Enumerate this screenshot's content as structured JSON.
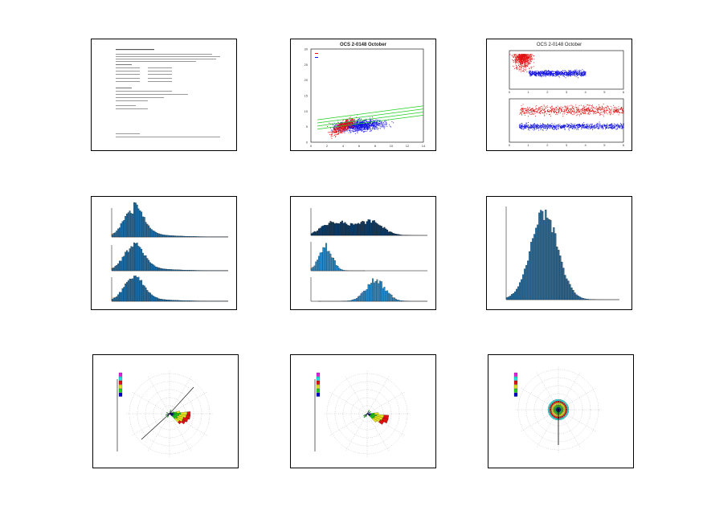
{
  "panels": [
    {
      "id": "p1"
    },
    {
      "id": "p2",
      "title": "OCS 2-0148 October"
    },
    {
      "id": "p3",
      "title": "OCS 2-0148 October"
    },
    {
      "id": "p4"
    },
    {
      "id": "p5"
    },
    {
      "id": "p6"
    },
    {
      "id": "p7"
    },
    {
      "id": "p8"
    },
    {
      "id": "p9"
    }
  ],
  "colors": {
    "red": "#e01010",
    "blue": "#1010e0",
    "green": "#20d020",
    "bar": "#1f6fa8",
    "magenta": "#e020e0",
    "cyan": "#20e0e0"
  },
  "chart_data": [
    {
      "type": "table",
      "panel": "p1",
      "title": ""
    },
    {
      "type": "scatter",
      "panel": "p2",
      "title": "OCS 2-0148 October",
      "xlim": [
        0,
        14
      ],
      "ylim": [
        0,
        30
      ],
      "xticks": [
        0,
        2,
        4,
        6,
        8,
        10,
        12,
        14
      ],
      "yticks": [
        0,
        5,
        10,
        15,
        20,
        25,
        30
      ],
      "series": [
        {
          "color": "red"
        },
        {
          "color": "blue"
        }
      ]
    },
    {
      "type": "scatter",
      "panel": "p3",
      "title": "OCS 2-0148 October",
      "xticks": [
        0,
        1,
        2,
        3,
        4,
        5,
        6
      ],
      "series": [
        {
          "color": "red"
        },
        {
          "color": "blue"
        }
      ]
    },
    {
      "type": "bar",
      "panel": "p4",
      "subplots": 3
    },
    {
      "type": "bar",
      "panel": "p5",
      "subplots": 3
    },
    {
      "type": "bar",
      "panel": "p6",
      "subplots": 1
    },
    {
      "type": "bar",
      "panel": "p7",
      "subtype": "wind-rose"
    },
    {
      "type": "bar",
      "panel": "p8",
      "subtype": "wind-rose"
    },
    {
      "type": "bar",
      "panel": "p9",
      "subtype": "wind-rose"
    }
  ]
}
